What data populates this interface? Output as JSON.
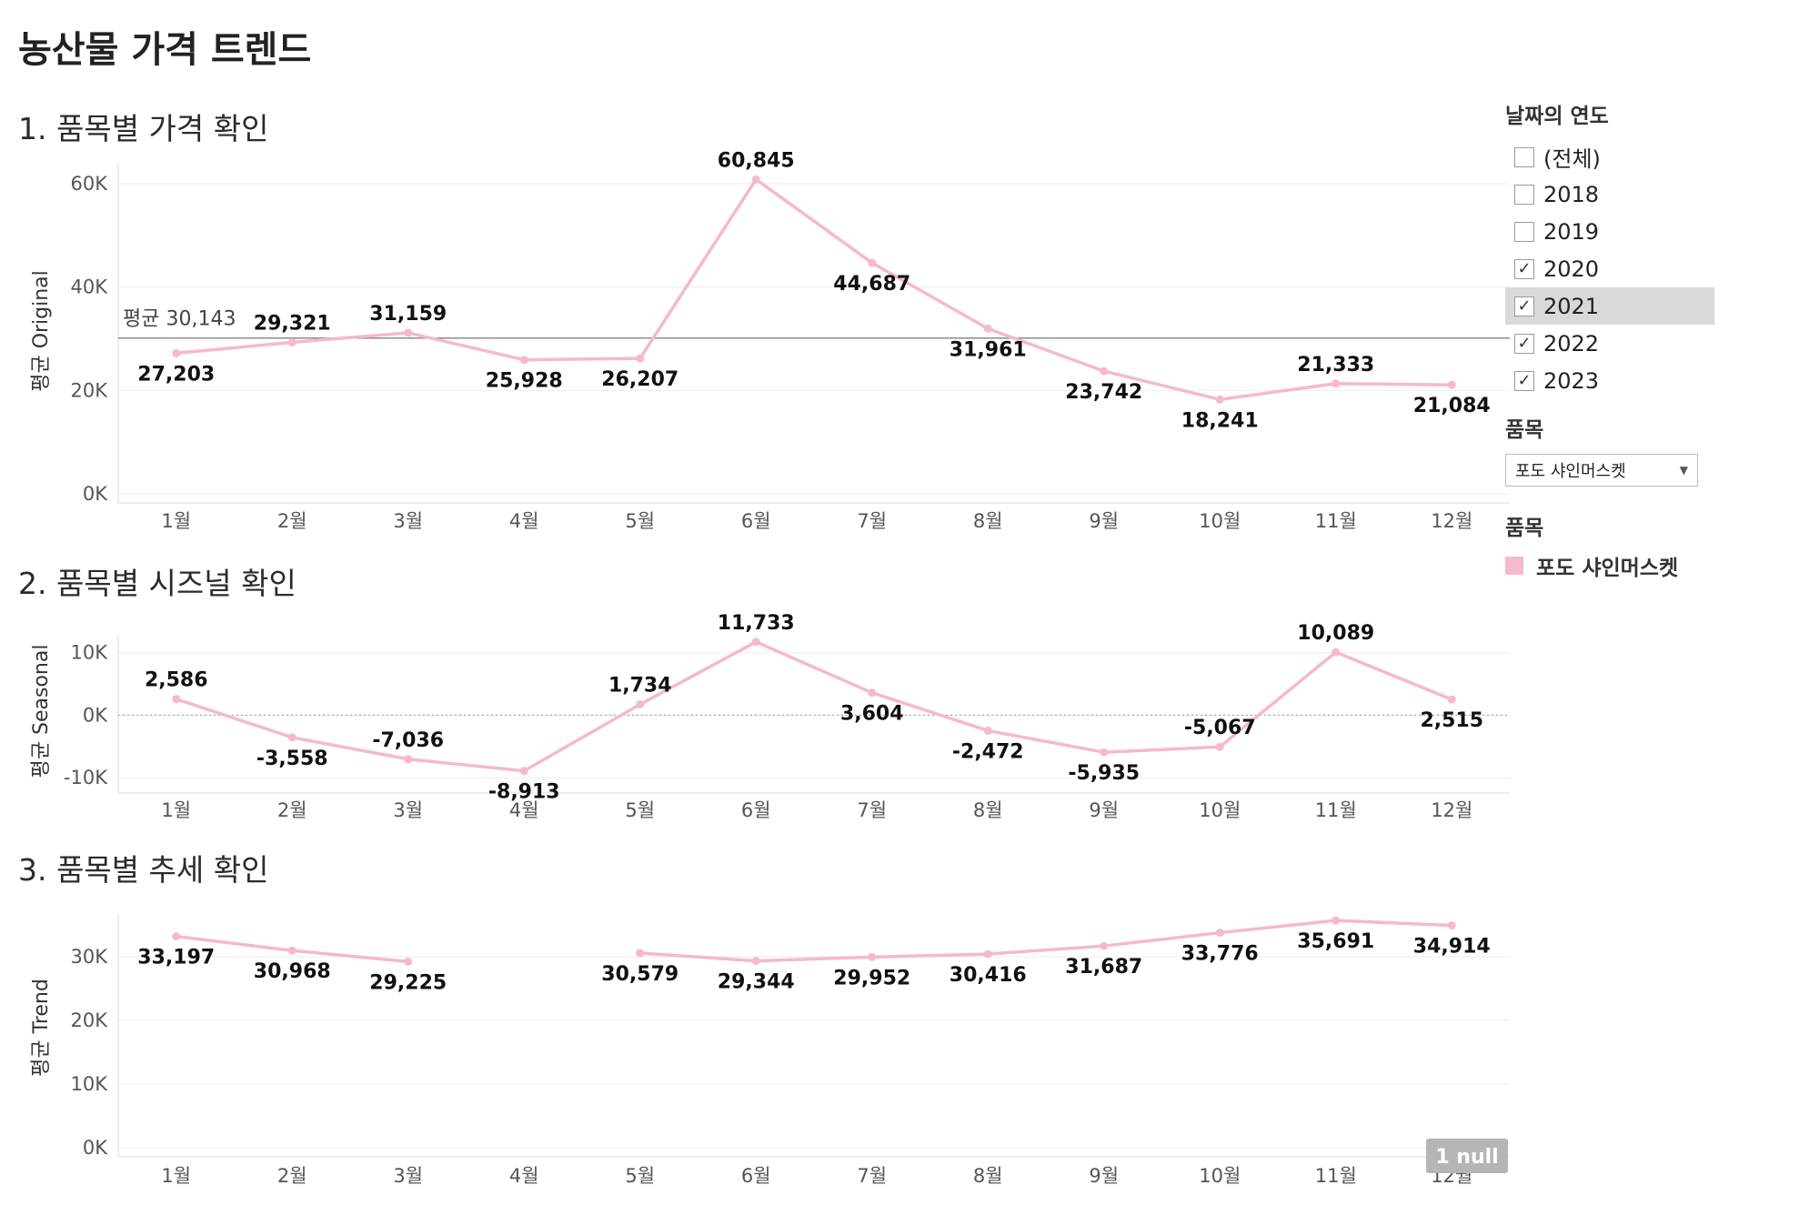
{
  "dashboard_title": "농산물 가격 트렌드",
  "sections": [
    {
      "title": "1. 품목별 가격 확인"
    },
    {
      "title": "2. 품목별 시즈널 확인"
    },
    {
      "title": "3. 품목별 추세 확인"
    }
  ],
  "filters": {
    "year_title": "날짜의 연도",
    "years": [
      {
        "label": "(전체)",
        "checked": false
      },
      {
        "label": "2018",
        "checked": false
      },
      {
        "label": "2019",
        "checked": false
      },
      {
        "label": "2020",
        "checked": true
      },
      {
        "label": "2021",
        "checked": true
      },
      {
        "label": "2022",
        "checked": true
      },
      {
        "label": "2023",
        "checked": true
      }
    ],
    "item_title": "품목",
    "item_selected": "포도 샤인머스켓",
    "legend_title": "품목",
    "legend_label": "포도 샤인머스켓",
    "legend_color": "#f6b8cc"
  },
  "chart_data": [
    {
      "type": "line",
      "title": "1. 품목별 가격 확인",
      "ylabel": "평균 Original",
      "categories": [
        "1월",
        "2월",
        "3월",
        "4월",
        "5월",
        "6월",
        "7월",
        "8월",
        "9월",
        "10월",
        "11월",
        "12월"
      ],
      "series": [
        {
          "name": "포도 샤인머스켓",
          "color": "#f6b8cc",
          "values": [
            27203,
            29321,
            31159,
            25928,
            26207,
            60845,
            44687,
            31961,
            23742,
            18241,
            21333,
            21084
          ]
        }
      ],
      "value_labels": [
        "27,203",
        "29,321",
        "31,159",
        "25,928",
        "26,207",
        "60,845",
        "44,687",
        "31,961",
        "23,742",
        "18,241",
        "21,333",
        "21,084"
      ],
      "label_pos": [
        "below",
        "above",
        "above",
        "below",
        "below",
        "above",
        "below",
        "below",
        "below",
        "below",
        "above",
        "below"
      ],
      "yticks": [
        0,
        20000,
        40000,
        60000
      ],
      "ytick_labels": [
        "0K",
        "20K",
        "40K",
        "60K"
      ],
      "ylim": [
        0,
        63000
      ],
      "reference_line": {
        "value": 30143,
        "label": "평균 30,143"
      }
    },
    {
      "type": "line",
      "title": "2. 품목별 시즈널 확인",
      "ylabel": "평균 Seasonal",
      "categories": [
        "1월",
        "2월",
        "3월",
        "4월",
        "5월",
        "6월",
        "7월",
        "8월",
        "9월",
        "10월",
        "11월",
        "12월"
      ],
      "series": [
        {
          "name": "포도 샤인머스켓",
          "color": "#f6b8cc",
          "values": [
            2586,
            -3558,
            -7036,
            -8913,
            1734,
            11733,
            3604,
            -2472,
            -5935,
            -5067,
            10089,
            2515
          ]
        }
      ],
      "value_labels": [
        "2,586",
        "-3,558",
        "-7,036",
        "-8,913",
        "1,734",
        "11,733",
        "3,604",
        "-2,472",
        "-5,935",
        "-5,067",
        "10,089",
        "2,515"
      ],
      "label_pos": [
        "above",
        "below",
        "above",
        "below",
        "above",
        "above",
        "below",
        "below",
        "below",
        "above",
        "above",
        "below"
      ],
      "yticks": [
        -10000,
        0,
        10000
      ],
      "ytick_labels": [
        "-10K",
        "0K",
        "10K"
      ],
      "ylim": [
        -11000,
        12000
      ],
      "zero_line": true
    },
    {
      "type": "line",
      "title": "3. 품목별 추세 확인",
      "ylabel": "평균 Trend",
      "categories": [
        "1월",
        "2월",
        "3월",
        "4월",
        "5월",
        "6월",
        "7월",
        "8월",
        "9월",
        "10월",
        "11월",
        "12월"
      ],
      "series": [
        {
          "name": "포도 샤인머스켓",
          "color": "#f6b8cc",
          "values": [
            33197,
            30968,
            29225,
            null,
            30579,
            29344,
            29952,
            30416,
            31687,
            33776,
            35691,
            34914
          ]
        }
      ],
      "value_labels": [
        "33,197",
        "30,968",
        "29,225",
        "",
        "30,579",
        "29,344",
        "29,952",
        "30,416",
        "31,687",
        "33,776",
        "35,691",
        "34,914"
      ],
      "label_pos": [
        "below",
        "below",
        "below",
        "none",
        "below",
        "below",
        "below",
        "below",
        "below",
        "below",
        "below",
        "below"
      ],
      "yticks": [
        0,
        10000,
        20000,
        30000
      ],
      "ytick_labels": [
        "0K",
        "10K",
        "20K",
        "30K"
      ],
      "ylim": [
        0,
        36000
      ],
      "null_badge": "1 null"
    }
  ]
}
